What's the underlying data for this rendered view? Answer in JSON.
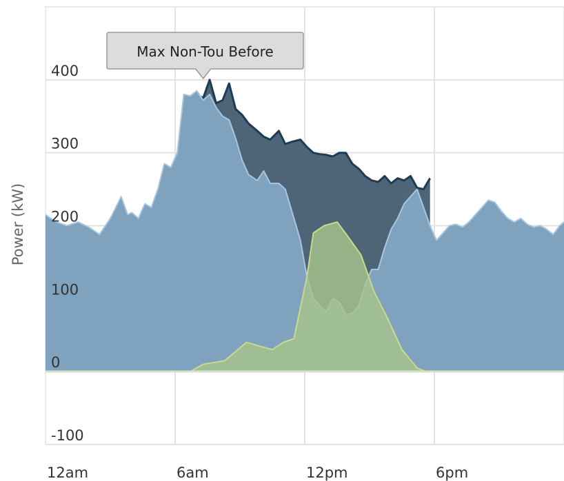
{
  "chart_data": {
    "type": "area",
    "title": "",
    "xlabel": "",
    "ylabel": "Power (kW)",
    "xlim": [
      0,
      24
    ],
    "ylim": [
      -100,
      500
    ],
    "x_ticks": [
      {
        "value": 0,
        "label": "12am"
      },
      {
        "value": 6,
        "label": "6am"
      },
      {
        "value": 12,
        "label": "12pm"
      },
      {
        "value": 18,
        "label": "6pm"
      }
    ],
    "y_ticks": [
      -100,
      0,
      100,
      200,
      300,
      400
    ],
    "grid": true,
    "tooltip": {
      "label": "Max Non-Tou Before",
      "x": 7.3,
      "y": 400
    },
    "series": [
      {
        "color": "#1f3b54",
        "fill": "#4d6577",
        "x": [
          7.0,
          7.3,
          7.6,
          7.9,
          8.2,
          8.5,
          8.8,
          9.1,
          9.4,
          9.8,
          10.1,
          10.4,
          10.8,
          11.1,
          11.4,
          11.8,
          12.1,
          12.4,
          12.7,
          13.0,
          13.3,
          13.6,
          13.9,
          14.2,
          14.5,
          14.8,
          15.1,
          15.4,
          15.7,
          16.0,
          16.3,
          16.6,
          16.9,
          17.2,
          17.5,
          17.8
        ],
        "values": [
          380,
          375,
          400,
          368,
          372,
          395,
          360,
          352,
          340,
          330,
          322,
          318,
          330,
          312,
          315,
          318,
          308,
          300,
          298,
          297,
          295,
          300,
          300,
          285,
          278,
          268,
          262,
          260,
          268,
          258,
          265,
          262,
          268,
          252,
          250,
          265
        ]
      },
      {
        "color": "#a8c6de",
        "fill": "#7fa2be",
        "x": [
          0,
          0.5,
          1.0,
          1.5,
          2.0,
          2.5,
          3.0,
          3.5,
          3.8,
          4.0,
          4.3,
          4.6,
          4.9,
          5.2,
          5.5,
          5.8,
          6.1,
          6.4,
          6.7,
          7.0,
          7.3,
          7.6,
          7.9,
          8.2,
          8.5,
          8.8,
          9.1,
          9.4,
          9.8,
          10.1,
          10.4,
          10.8,
          11.1,
          11.4,
          11.8,
          12.1,
          12.4,
          12.7,
          13.0,
          13.3,
          13.6,
          13.9,
          14.2,
          14.5,
          14.8,
          15.1,
          15.4,
          15.7,
          16.0,
          16.3,
          16.6,
          16.9,
          17.2,
          17.5,
          17.8,
          18.1,
          18.4,
          18.7,
          19.0,
          19.3,
          19.6,
          19.9,
          20.2,
          20.5,
          20.8,
          21.1,
          21.4,
          21.7,
          22.0,
          22.3,
          22.6,
          22.9,
          23.2,
          23.5,
          23.8,
          24.0
        ],
        "values": [
          215,
          205,
          200,
          205,
          198,
          188,
          210,
          240,
          215,
          218,
          210,
          230,
          225,
          250,
          285,
          280,
          300,
          380,
          378,
          385,
          372,
          380,
          362,
          350,
          345,
          320,
          290,
          270,
          262,
          275,
          258,
          258,
          250,
          220,
          180,
          130,
          100,
          90,
          82,
          100,
          95,
          78,
          80,
          90,
          120,
          140,
          140,
          170,
          195,
          210,
          230,
          240,
          250,
          225,
          200,
          180,
          190,
          200,
          202,
          198,
          205,
          215,
          225,
          235,
          232,
          220,
          210,
          205,
          210,
          202,
          198,
          200,
          195,
          188,
          200,
          205
        ]
      },
      {
        "color": "#c9db8a",
        "fill": "#a6c48c",
        "x": [
          6.7,
          7.3,
          8.3,
          9.3,
          10.5,
          11.0,
          11.5,
          12.1,
          12.4,
          12.9,
          13.5,
          14.0,
          14.6,
          15.2,
          15.8,
          16.5,
          17.2,
          17.6
        ],
        "values": [
          0,
          10,
          15,
          40,
          30,
          40,
          45,
          130,
          190,
          200,
          205,
          185,
          160,
          110,
          75,
          30,
          5,
          0
        ]
      }
    ]
  }
}
